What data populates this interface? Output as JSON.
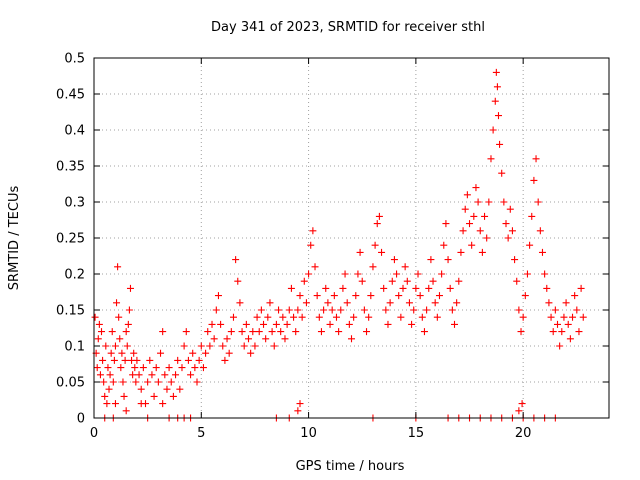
{
  "chart_data": {
    "type": "scatter",
    "title": "Day 341 of 2023, SRMTID for receiver sthl",
    "xlabel": "GPS time / hours",
    "ylabel": "SRMTID / TECUs",
    "xlim": [
      0,
      24
    ],
    "ylim": [
      0,
      0.5
    ],
    "x_ticks": [
      0,
      5,
      10,
      15,
      20
    ],
    "x_tick_labels": [
      "0",
      "5",
      "10",
      "15",
      "20"
    ],
    "y_ticks": [
      0,
      0.05,
      0.1,
      0.15,
      0.2,
      0.25,
      0.3,
      0.35,
      0.4,
      0.45,
      0.5
    ],
    "y_tick_labels": [
      "0",
      "0.05",
      "0.1",
      "0.15",
      "0.2",
      "0.25",
      "0.3",
      "0.35",
      "0.4",
      "0.45",
      "0.5"
    ],
    "grid": true,
    "marker": "+",
    "series": [
      {
        "name": "sthl",
        "color": "#ff0000",
        "points": [
          [
            0.05,
            0.14
          ],
          [
            0.1,
            0.09
          ],
          [
            0.15,
            0.07
          ],
          [
            0.2,
            0.11
          ],
          [
            0.25,
            0.13
          ],
          [
            0.3,
            0.06
          ],
          [
            0.35,
            0.12
          ],
          [
            0.4,
            0.08
          ],
          [
            0.45,
            0.05
          ],
          [
            0.5,
            0.03
          ],
          [
            0.55,
            0.1
          ],
          [
            0.6,
            0.02
          ],
          [
            0.65,
            0.07
          ],
          [
            0.7,
            0.04
          ],
          [
            0.75,
            0.06
          ],
          [
            0.8,
            0.09
          ],
          [
            0.85,
            0.12
          ],
          [
            0.9,
            0.05
          ],
          [
            0.95,
            0.08
          ],
          [
            1.0,
            0.1
          ],
          [
            1.05,
            0.16
          ],
          [
            1.1,
            0.21
          ],
          [
            1.15,
            0.14
          ],
          [
            1.2,
            0.11
          ],
          [
            1.25,
            0.07
          ],
          [
            1.3,
            0.09
          ],
          [
            1.35,
            0.05
          ],
          [
            1.4,
            0.03
          ],
          [
            1.45,
            0.08
          ],
          [
            1.5,
            0.12
          ],
          [
            1.55,
            0.1
          ],
          [
            1.6,
            0.13
          ],
          [
            1.65,
            0.15
          ],
          [
            1.7,
            0.18
          ],
          [
            1.75,
            0.08
          ],
          [
            1.8,
            0.06
          ],
          [
            1.85,
            0.09
          ],
          [
            1.9,
            0.07
          ],
          [
            1.95,
            0.05
          ],
          [
            2.0,
            0.08
          ],
          [
            2.1,
            0.06
          ],
          [
            2.2,
            0.04
          ],
          [
            2.3,
            0.07
          ],
          [
            2.4,
            0.02
          ],
          [
            2.5,
            0.05
          ],
          [
            2.6,
            0.08
          ],
          [
            2.7,
            0.06
          ],
          [
            2.8,
            0.03
          ],
          [
            2.9,
            0.07
          ],
          [
            3.0,
            0.05
          ],
          [
            3.1,
            0.09
          ],
          [
            3.2,
            0.12
          ],
          [
            3.3,
            0.06
          ],
          [
            3.4,
            0.04
          ],
          [
            3.5,
            0.07
          ],
          [
            3.6,
            0.05
          ],
          [
            3.7,
            0.03
          ],
          [
            3.8,
            0.06
          ],
          [
            3.9,
            0.08
          ],
          [
            4.0,
            0.04
          ],
          [
            4.1,
            0.07
          ],
          [
            4.2,
            0.1
          ],
          [
            4.3,
            0.12
          ],
          [
            4.4,
            0.08
          ],
          [
            4.5,
            0.06
          ],
          [
            4.6,
            0.09
          ],
          [
            4.7,
            0.07
          ],
          [
            4.8,
            0.05
          ],
          [
            4.9,
            0.08
          ],
          [
            5.0,
            0.1
          ],
          [
            5.1,
            0.07
          ],
          [
            5.2,
            0.09
          ],
          [
            5.3,
            0.12
          ],
          [
            5.4,
            0.1
          ],
          [
            5.5,
            0.13
          ],
          [
            5.6,
            0.11
          ],
          [
            5.7,
            0.15
          ],
          [
            5.8,
            0.17
          ],
          [
            5.9,
            0.13
          ],
          [
            6.0,
            0.1
          ],
          [
            6.1,
            0.08
          ],
          [
            6.2,
            0.11
          ],
          [
            6.3,
            0.09
          ],
          [
            6.4,
            0.12
          ],
          [
            6.5,
            0.14
          ],
          [
            6.6,
            0.22
          ],
          [
            6.7,
            0.19
          ],
          [
            6.8,
            0.16
          ],
          [
            6.9,
            0.12
          ],
          [
            7.0,
            0.1
          ],
          [
            7.1,
            0.13
          ],
          [
            7.2,
            0.11
          ],
          [
            7.3,
            0.09
          ],
          [
            7.4,
            0.12
          ],
          [
            7.5,
            0.1
          ],
          [
            7.6,
            0.14
          ],
          [
            7.7,
            0.12
          ],
          [
            7.8,
            0.15
          ],
          [
            7.9,
            0.13
          ],
          [
            8.0,
            0.11
          ],
          [
            8.1,
            0.14
          ],
          [
            8.2,
            0.16
          ],
          [
            8.3,
            0.12
          ],
          [
            8.4,
            0.1
          ],
          [
            8.5,
            0.13
          ],
          [
            8.6,
            0.15
          ],
          [
            8.7,
            0.12
          ],
          [
            8.8,
            0.14
          ],
          [
            8.9,
            0.11
          ],
          [
            9.0,
            0.13
          ],
          [
            9.1,
            0.15
          ],
          [
            9.2,
            0.18
          ],
          [
            9.3,
            0.14
          ],
          [
            9.4,
            0.12
          ],
          [
            9.5,
            0.15
          ],
          [
            9.6,
            0.17
          ],
          [
            9.7,
            0.14
          ],
          [
            9.8,
            0.19
          ],
          [
            9.9,
            0.16
          ],
          [
            10.0,
            0.2
          ],
          [
            10.1,
            0.24
          ],
          [
            10.2,
            0.26
          ],
          [
            10.3,
            0.21
          ],
          [
            10.4,
            0.17
          ],
          [
            10.5,
            0.14
          ],
          [
            10.6,
            0.12
          ],
          [
            10.7,
            0.15
          ],
          [
            10.8,
            0.18
          ],
          [
            10.9,
            0.16
          ],
          [
            11.0,
            0.13
          ],
          [
            11.1,
            0.15
          ],
          [
            11.2,
            0.17
          ],
          [
            11.3,
            0.14
          ],
          [
            11.4,
            0.12
          ],
          [
            11.5,
            0.15
          ],
          [
            11.6,
            0.18
          ],
          [
            11.7,
            0.2
          ],
          [
            11.8,
            0.16
          ],
          [
            11.9,
            0.13
          ],
          [
            12.0,
            0.11
          ],
          [
            12.1,
            0.14
          ],
          [
            12.2,
            0.17
          ],
          [
            12.3,
            0.2
          ],
          [
            12.4,
            0.23
          ],
          [
            12.5,
            0.19
          ],
          [
            12.6,
            0.15
          ],
          [
            12.7,
            0.12
          ],
          [
            12.8,
            0.14
          ],
          [
            12.9,
            0.17
          ],
          [
            13.0,
            0.21
          ],
          [
            13.1,
            0.24
          ],
          [
            13.2,
            0.27
          ],
          [
            13.3,
            0.28
          ],
          [
            13.4,
            0.23
          ],
          [
            13.5,
            0.18
          ],
          [
            13.6,
            0.15
          ],
          [
            13.7,
            0.13
          ],
          [
            13.8,
            0.16
          ],
          [
            13.9,
            0.19
          ],
          [
            14.0,
            0.22
          ],
          [
            14.1,
            0.2
          ],
          [
            14.2,
            0.17
          ],
          [
            14.3,
            0.14
          ],
          [
            14.4,
            0.18
          ],
          [
            14.5,
            0.21
          ],
          [
            14.6,
            0.19
          ],
          [
            14.7,
            0.16
          ],
          [
            14.8,
            0.13
          ],
          [
            14.9,
            0.15
          ],
          [
            15.0,
            0.18
          ],
          [
            15.1,
            0.2
          ],
          [
            15.2,
            0.17
          ],
          [
            15.3,
            0.14
          ],
          [
            15.4,
            0.12
          ],
          [
            15.5,
            0.15
          ],
          [
            15.6,
            0.18
          ],
          [
            15.7,
            0.22
          ],
          [
            15.8,
            0.19
          ],
          [
            15.9,
            0.16
          ],
          [
            16.0,
            0.14
          ],
          [
            16.1,
            0.17
          ],
          [
            16.2,
            0.2
          ],
          [
            16.3,
            0.24
          ],
          [
            16.4,
            0.27
          ],
          [
            16.5,
            0.22
          ],
          [
            16.6,
            0.18
          ],
          [
            16.7,
            0.15
          ],
          [
            16.8,
            0.13
          ],
          [
            16.9,
            0.16
          ],
          [
            17.0,
            0.19
          ],
          [
            17.1,
            0.23
          ],
          [
            17.2,
            0.26
          ],
          [
            17.3,
            0.29
          ],
          [
            17.4,
            0.31
          ],
          [
            17.5,
            0.27
          ],
          [
            17.6,
            0.24
          ],
          [
            17.7,
            0.28
          ],
          [
            17.8,
            0.32
          ],
          [
            17.9,
            0.3
          ],
          [
            18.0,
            0.26
          ],
          [
            18.1,
            0.23
          ],
          [
            18.2,
            0.28
          ],
          [
            18.3,
            0.25
          ],
          [
            18.4,
            0.3
          ],
          [
            18.5,
            0.36
          ],
          [
            18.6,
            0.4
          ],
          [
            18.7,
            0.44
          ],
          [
            18.75,
            0.48
          ],
          [
            18.8,
            0.46
          ],
          [
            18.85,
            0.42
          ],
          [
            18.9,
            0.38
          ],
          [
            19.0,
            0.34
          ],
          [
            19.1,
            0.3
          ],
          [
            19.2,
            0.27
          ],
          [
            19.3,
            0.25
          ],
          [
            19.4,
            0.29
          ],
          [
            19.5,
            0.26
          ],
          [
            19.6,
            0.22
          ],
          [
            19.7,
            0.19
          ],
          [
            19.8,
            0.15
          ],
          [
            19.9,
            0.12
          ],
          [
            20.0,
            0.14
          ],
          [
            20.1,
            0.17
          ],
          [
            20.2,
            0.2
          ],
          [
            20.3,
            0.24
          ],
          [
            20.4,
            0.28
          ],
          [
            20.5,
            0.33
          ],
          [
            20.6,
            0.36
          ],
          [
            20.7,
            0.3
          ],
          [
            20.8,
            0.26
          ],
          [
            20.9,
            0.23
          ],
          [
            21.0,
            0.2
          ],
          [
            21.1,
            0.18
          ],
          [
            21.2,
            0.16
          ],
          [
            21.3,
            0.14
          ],
          [
            21.4,
            0.12
          ],
          [
            21.5,
            0.15
          ],
          [
            21.6,
            0.13
          ],
          [
            21.7,
            0.1
          ],
          [
            21.8,
            0.12
          ],
          [
            21.9,
            0.14
          ],
          [
            22.0,
            0.16
          ],
          [
            22.1,
            0.13
          ],
          [
            22.2,
            0.11
          ],
          [
            22.3,
            0.14
          ],
          [
            22.4,
            0.17
          ],
          [
            22.5,
            0.15
          ],
          [
            22.6,
            0.12
          ],
          [
            22.7,
            0.18
          ],
          [
            22.8,
            0.14
          ],
          [
            0.5,
            0.0
          ],
          [
            0.9,
            0.0
          ],
          [
            1.5,
            0.01
          ],
          [
            2.5,
            0.0
          ],
          [
            3.5,
            0.0
          ],
          [
            3.9,
            0.0
          ],
          [
            4.2,
            0.0
          ],
          [
            4.5,
            0.0
          ],
          [
            8.5,
            0.0
          ],
          [
            9.1,
            0.0
          ],
          [
            9.5,
            0.01
          ],
          [
            13.0,
            0.0
          ],
          [
            15.0,
            0.0
          ],
          [
            16.5,
            0.0
          ],
          [
            17.0,
            0.0
          ],
          [
            17.5,
            0.0
          ],
          [
            18.0,
            0.0
          ],
          [
            18.5,
            0.0
          ],
          [
            19.0,
            0.0
          ],
          [
            19.5,
            0.0
          ],
          [
            20.0,
            0.0
          ],
          [
            20.5,
            0.0
          ],
          [
            21.0,
            0.0
          ],
          [
            21.5,
            0.0
          ],
          [
            19.95,
            0.02
          ],
          [
            19.8,
            0.01
          ],
          [
            9.6,
            0.02
          ],
          [
            3.2,
            0.02
          ],
          [
            2.2,
            0.02
          ],
          [
            1.0,
            0.02
          ]
        ]
      }
    ]
  }
}
